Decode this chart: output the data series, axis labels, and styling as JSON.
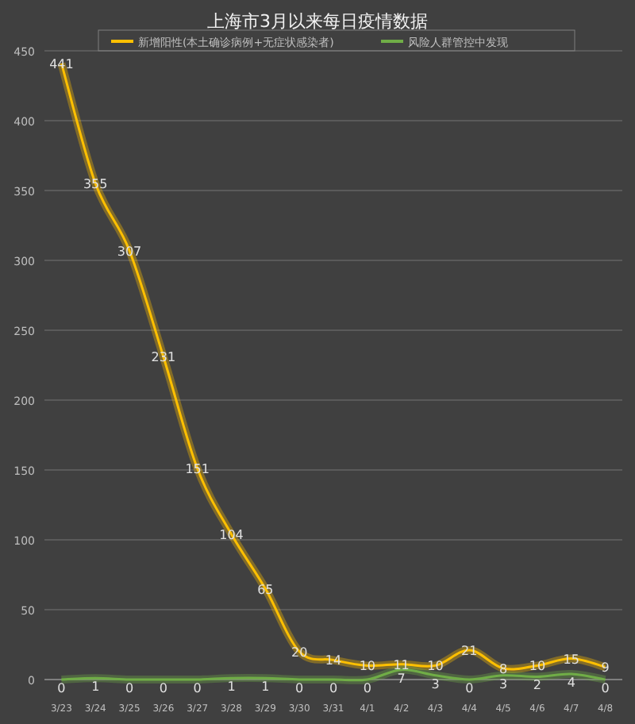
{
  "chart_data": {
    "type": "line",
    "title": "上海市3月以来每日疫情数据",
    "categories": [
      "3/23",
      "3/24",
      "3/25",
      "3/26",
      "3/27",
      "3/28",
      "3/29",
      "3/30",
      "3/31",
      "4/1",
      "4/2",
      "4/3",
      "4/4",
      "4/5",
      "4/6",
      "4/7",
      "4/8"
    ],
    "series": [
      {
        "name": "新增阳性(本土确诊病例+无症状感染者)",
        "color": "#ffc000",
        "values": [
          441,
          355,
          307,
          231,
          151,
          104,
          65,
          20,
          14,
          10,
          11,
          10,
          21,
          8,
          10,
          15,
          9
        ]
      },
      {
        "name": "风险人群管控中发现",
        "color": "#70ad47",
        "values": [
          0,
          1,
          0,
          0,
          0,
          1,
          1,
          0,
          0,
          0,
          7,
          3,
          0,
          3,
          2,
          4,
          0
        ]
      }
    ],
    "ylim": [
      0,
      450
    ],
    "yticks": [
      0,
      50,
      100,
      150,
      200,
      250,
      300,
      350,
      400,
      450
    ],
    "grid": "y",
    "legend": "top",
    "data_labels": true
  }
}
